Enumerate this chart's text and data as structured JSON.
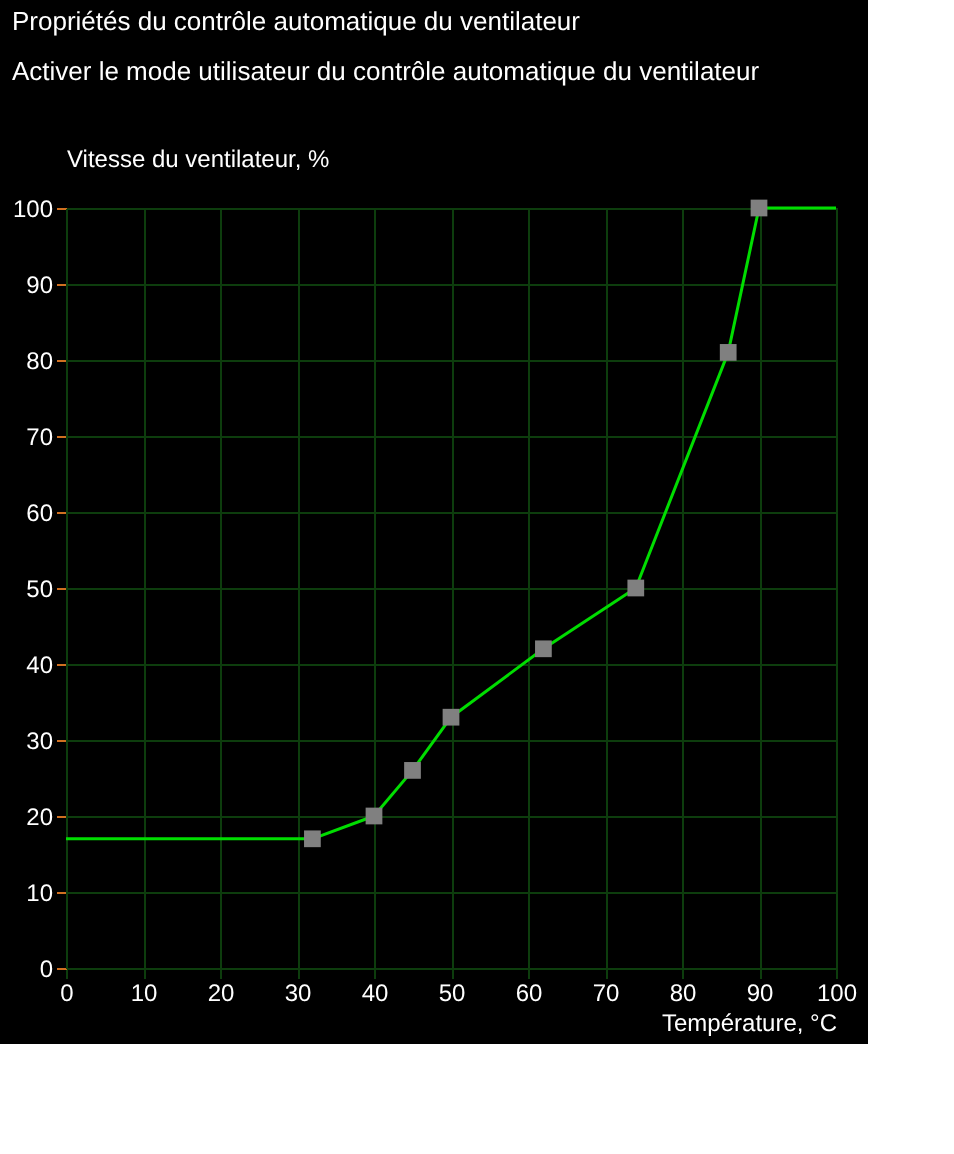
{
  "chart_data": {
    "type": "line",
    "title": "Propriétés du contrôle automatique du ventilateur",
    "annotations": [
      "Activer le mode utilisateur du contrôle automatique du ventilateur"
    ],
    "xlabel": "Température, °C",
    "ylabel": "Vitesse du ventilateur, %",
    "xlim": [
      0,
      100
    ],
    "ylim": [
      0,
      100
    ],
    "xticks": [
      0,
      10,
      20,
      30,
      40,
      50,
      60,
      70,
      80,
      90,
      100
    ],
    "yticks": [
      0,
      10,
      20,
      30,
      40,
      50,
      60,
      70,
      80,
      90,
      100
    ],
    "grid": true,
    "series": [
      {
        "type": "line",
        "marker": "none",
        "color": "#00dd00",
        "x": [
          0,
          32,
          40,
          45,
          50,
          62,
          74,
          86,
          90,
          100
        ],
        "values": [
          17,
          17,
          20,
          26,
          33,
          42,
          50,
          81,
          100,
          100
        ]
      },
      {
        "type": "scatter",
        "marker": "square",
        "color": "#808080",
        "x": [
          32,
          40,
          45,
          50,
          62,
          74,
          86,
          90
        ],
        "values": [
          17,
          20,
          26,
          33,
          42,
          50,
          81,
          100
        ]
      }
    ]
  }
}
